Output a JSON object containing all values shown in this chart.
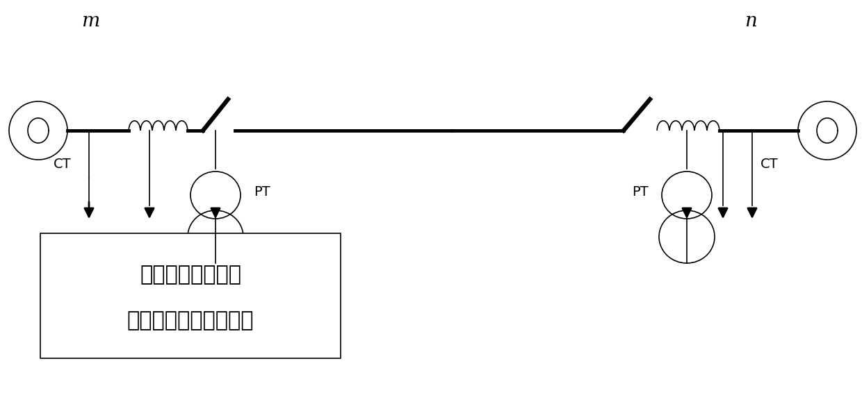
{
  "bg_color": "#ffffff",
  "line_color": "#000000",
  "lw_thick": 3.5,
  "lw_med": 2.0,
  "lw_thin": 1.2,
  "fig_width": 12.4,
  "fig_height": 5.66,
  "m_label": "m",
  "n_label": "n",
  "ct_label": "CT",
  "pt_label": "PT",
  "box_text_line1": "应用本发明方法的",
  "box_text_line2": "线路单端故障测距装置"
}
